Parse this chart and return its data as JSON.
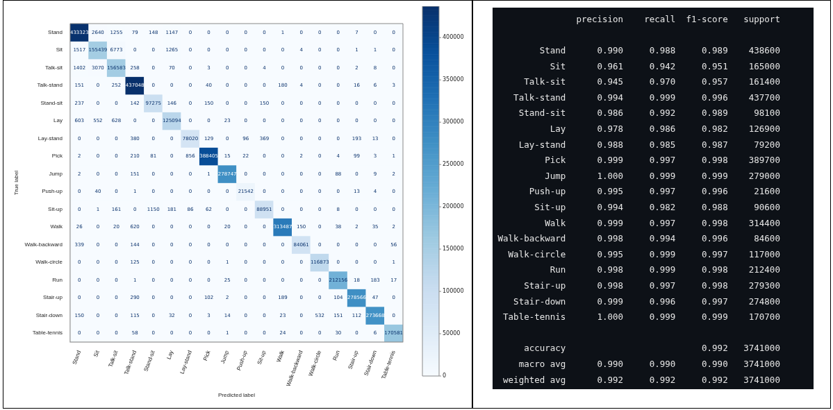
{
  "chart_data": [
    {
      "type": "heatmap",
      "xlabel": "Predicted label",
      "ylabel": "True label",
      "categories": [
        "Stand",
        "Sit",
        "Talk-sit",
        "Talk-stand",
        "Stand-sit",
        "Lay",
        "Lay-stand",
        "Pick",
        "Jump",
        "Push-up",
        "Sit-up",
        "Walk",
        "Walk-backward",
        "Walk-circle",
        "Run",
        "Stair-up",
        "Stair-down",
        "Table-tennis"
      ],
      "y_categories": [
        "Stand",
        "Sit",
        "Talk-sit",
        "Talk-stand",
        "Stand-sit",
        "Lay",
        "Lay-stand",
        "Pick",
        "Jump",
        "Push-up",
        "Sit-up",
        "Walk",
        "Walk-backward",
        "Walk-circle",
        "Run",
        "Stair-up",
        "Stair-down",
        "Table-tennis"
      ],
      "cells": [
        [
          433323,
          2640,
          1255,
          79,
          148,
          1147,
          0,
          0,
          0,
          0,
          0,
          1,
          0,
          0,
          0,
          7,
          0,
          0
        ],
        [
          1517,
          155439,
          6773,
          0,
          0,
          1265,
          0,
          0,
          0,
          0,
          0,
          0,
          4,
          0,
          0,
          1,
          1,
          0
        ],
        [
          1402,
          3070,
          156583,
          258,
          0,
          70,
          0,
          3,
          0,
          0,
          4,
          0,
          0,
          0,
          0,
          2,
          8,
          0
        ],
        [
          151,
          0,
          252,
          437048,
          0,
          0,
          0,
          40,
          0,
          0,
          0,
          180,
          4,
          0,
          0,
          16,
          6,
          3
        ],
        [
          237,
          0,
          0,
          142,
          97275,
          146,
          0,
          150,
          0,
          0,
          150,
          0,
          0,
          0,
          0,
          0,
          0,
          0
        ],
        [
          603,
          552,
          628,
          0,
          0,
          125094,
          0,
          0,
          23,
          0,
          0,
          0,
          0,
          0,
          0,
          0,
          0,
          0
        ],
        [
          0,
          0,
          0,
          380,
          0,
          0,
          78020,
          129,
          0,
          96,
          369,
          0,
          0,
          0,
          0,
          193,
          13,
          0
        ],
        [
          2,
          0,
          0,
          210,
          81,
          0,
          856,
          388405,
          15,
          22,
          0,
          0,
          2,
          0,
          4,
          99,
          3,
          1
        ],
        [
          2,
          0,
          0,
          151,
          0,
          0,
          0,
          1,
          278747,
          0,
          0,
          0,
          0,
          0,
          88,
          0,
          9,
          2
        ],
        [
          0,
          40,
          0,
          1,
          0,
          0,
          0,
          0,
          0,
          21542,
          0,
          0,
          0,
          0,
          0,
          13,
          4,
          0
        ],
        [
          0,
          1,
          161,
          0,
          1150,
          181,
          86,
          62,
          0,
          0,
          88951,
          0,
          0,
          0,
          8,
          0,
          0,
          0
        ],
        [
          26,
          0,
          20,
          620,
          0,
          0,
          0,
          0,
          20,
          0,
          0,
          313487,
          150,
          0,
          38,
          2,
          35,
          2
        ],
        [
          339,
          0,
          0,
          144,
          0,
          0,
          0,
          0,
          0,
          0,
          0,
          0,
          84061,
          0,
          0,
          0,
          0,
          56
        ],
        [
          0,
          0,
          0,
          125,
          0,
          0,
          0,
          0,
          1,
          0,
          0,
          0,
          0,
          116873,
          0,
          0,
          0,
          1
        ],
        [
          0,
          0,
          0,
          1,
          0,
          0,
          0,
          0,
          25,
          0,
          0,
          0,
          0,
          0,
          212156,
          18,
          183,
          17
        ],
        [
          0,
          0,
          0,
          290,
          0,
          0,
          0,
          102,
          2,
          0,
          0,
          189,
          0,
          0,
          104,
          278566,
          47,
          0
        ],
        [
          150,
          0,
          0,
          115,
          0,
          32,
          0,
          3,
          14,
          0,
          0,
          23,
          0,
          532,
          151,
          112,
          273668,
          0
        ],
        [
          0,
          0,
          0,
          58,
          0,
          0,
          0,
          0,
          1,
          0,
          0,
          24,
          0,
          0,
          30,
          0,
          6,
          170581
        ]
      ],
      "data_labels": true,
      "clim": [
        0,
        437048
      ],
      "cticks": [
        0,
        50000,
        100000,
        150000,
        200000,
        250000,
        300000,
        350000,
        400000
      ]
    },
    {
      "type": "other",
      "categories": [
        "precision",
        "recall",
        "f1-score",
        "support"
      ],
      "y_categories": [
        "Stand",
        "Sit",
        "Talk-sit",
        "Talk-stand",
        "Stand-sit",
        "Lay",
        "Lay-stand",
        "Pick",
        "Jump",
        "Push-up",
        "Sit-up",
        "Walk",
        "Walk-backward",
        "Walk-circle",
        "Run",
        "Stair-up",
        "Stair-down",
        "Table-tennis",
        null,
        "accuracy",
        "macro avg",
        "weighted avg"
      ],
      "cell_labels": [
        [
          "0.990",
          "0.988",
          "0.989",
          "438600"
        ],
        [
          "0.961",
          "0.942",
          "0.951",
          "165000"
        ],
        [
          "0.945",
          "0.970",
          "0.957",
          "161400"
        ],
        [
          "0.994",
          "0.999",
          "0.996",
          "437700"
        ],
        [
          "0.986",
          "0.992",
          "0.989",
          "98100"
        ],
        [
          "0.978",
          "0.986",
          "0.982",
          "126900"
        ],
        [
          "0.988",
          "0.985",
          "0.987",
          "79200"
        ],
        [
          "0.999",
          "0.997",
          "0.998",
          "389700"
        ],
        [
          "1.000",
          "0.999",
          "0.999",
          "279000"
        ],
        [
          "0.995",
          "0.997",
          "0.996",
          "21600"
        ],
        [
          "0.994",
          "0.982",
          "0.988",
          "90600"
        ],
        [
          "0.999",
          "0.997",
          "0.998",
          "314400"
        ],
        [
          "0.998",
          "0.994",
          "0.996",
          "84600"
        ],
        [
          "0.995",
          "0.999",
          "0.997",
          "117000"
        ],
        [
          "0.998",
          "0.999",
          "0.998",
          "212400"
        ],
        [
          "0.998",
          "0.997",
          "0.998",
          "279300"
        ],
        [
          "0.999",
          "0.996",
          "0.997",
          "274800"
        ],
        [
          "1.000",
          "0.999",
          "0.999",
          "170700"
        ],
        [
          null,
          null,
          null,
          null
        ],
        [
          null,
          null,
          "0.992",
          "3741000"
        ],
        [
          "0.990",
          "0.990",
          "0.990",
          "3741000"
        ],
        [
          "0.992",
          "0.992",
          "0.992",
          "3741000"
        ]
      ]
    }
  ]
}
